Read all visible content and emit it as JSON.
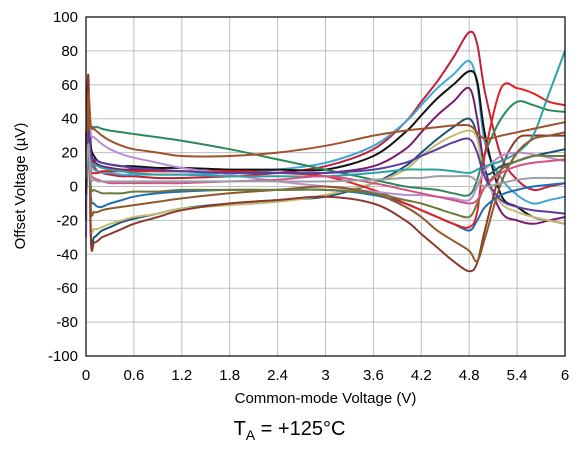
{
  "chart_data": {
    "type": "line",
    "title": "",
    "xlabel": "Common-mode Voltage (V)",
    "ylabel": "Offset Voltage (µV)",
    "xlim": [
      0,
      6
    ],
    "ylim": [
      -100,
      100
    ],
    "x_ticks": [
      "0",
      "0.6",
      "1.2",
      "1.8",
      "2.4",
      "3",
      "3.6",
      "4.2",
      "4.8",
      "5.4",
      "6"
    ],
    "y_ticks": [
      "-100",
      "-80",
      "-60",
      "-40",
      "-20",
      "0",
      "20",
      "40",
      "60",
      "80",
      "100"
    ],
    "grid": true,
    "legend": "none",
    "caption": {
      "main": "T",
      "sub": "A",
      "rest": " = +125°C"
    },
    "x": [
      0,
      0.03,
      0.06,
      0.1,
      0.15,
      0.2,
      0.3,
      0.45,
      0.6,
      0.9,
      1.2,
      1.8,
      2.4,
      3,
      3.6,
      4.0,
      4.2,
      4.4,
      4.6,
      4.8,
      4.9,
      5.0,
      5.2,
      5.4,
      5.6,
      5.8,
      6
    ],
    "series": [
      {
        "color": "#c0203a",
        "values": [
          30,
          45,
          22,
          12,
          9,
          8,
          7,
          6,
          6,
          5,
          5,
          6,
          8,
          12,
          22,
          38,
          50,
          62,
          76,
          91,
          84,
          55,
          18,
          4,
          -2,
          0,
          2
        ]
      },
      {
        "color": "#3fa7d6",
        "values": [
          -10,
          20,
          14,
          10,
          9,
          8,
          8,
          7,
          7,
          7,
          7,
          8,
          10,
          14,
          24,
          38,
          48,
          58,
          66,
          74,
          60,
          25,
          5,
          -5,
          -10,
          -8,
          -6
        ]
      },
      {
        "color": "#111111",
        "values": [
          -20,
          50,
          24,
          18,
          15,
          14,
          13,
          12,
          12,
          11,
          11,
          10,
          10,
          10,
          18,
          32,
          42,
          52,
          60,
          68,
          62,
          30,
          -5,
          -12,
          -18,
          -20,
          -22
        ]
      },
      {
        "color": "#7a1c6e",
        "values": [
          -15,
          35,
          20,
          15,
          13,
          12,
          11,
          10,
          10,
          9,
          9,
          8,
          8,
          8,
          12,
          22,
          32,
          42,
          50,
          58,
          40,
          10,
          -15,
          -20,
          -22,
          -20,
          -18
        ]
      },
      {
        "color": "#1a5276",
        "values": [
          0,
          60,
          -28,
          -30,
          -28,
          -26,
          -24,
          -21,
          -19,
          -16,
          -13,
          -10,
          -8,
          -6,
          2,
          12,
          20,
          28,
          35,
          40,
          30,
          8,
          12,
          15,
          18,
          20,
          22
        ]
      },
      {
        "color": "#c4bb72",
        "values": [
          5,
          35,
          -22,
          -25,
          -25,
          -24,
          -22,
          -20,
          -18,
          -16,
          -13,
          -11,
          -9,
          -5,
          2,
          10,
          18,
          25,
          30,
          33,
          28,
          5,
          -10,
          -15,
          -18,
          -20,
          -22
        ]
      },
      {
        "color": "#2c8a5a",
        "values": [
          -5,
          40,
          36,
          35,
          35,
          34,
          33,
          32,
          31,
          29,
          27,
          22,
          16,
          10,
          4,
          0,
          -1,
          -2,
          -4,
          -5,
          4,
          20,
          40,
          50,
          48,
          45,
          44
        ]
      },
      {
        "color": "#8b3a2e",
        "values": [
          20,
          65,
          -30,
          -33,
          -32,
          -30,
          -28,
          -25,
          -22,
          -18,
          -14,
          -10,
          -8,
          -6,
          -10,
          -20,
          -28,
          -36,
          -44,
          -50,
          -45,
          -25,
          10,
          28,
          30,
          30,
          30
        ]
      },
      {
        "color": "#1f6fb2",
        "values": [
          10,
          38,
          -5,
          -10,
          -12,
          -12,
          -10,
          -8,
          -6,
          -4,
          -3,
          -2,
          -2,
          -2,
          -5,
          -10,
          -14,
          -18,
          -22,
          -26,
          -20,
          -12,
          -5,
          -2,
          0,
          1,
          2
        ]
      },
      {
        "color": "#e32020",
        "values": [
          0,
          30,
          10,
          8,
          8,
          9,
          9,
          9,
          9,
          9,
          9,
          9,
          8,
          6,
          -2,
          -10,
          -14,
          -18,
          -22,
          -24,
          -15,
          20,
          58,
          58,
          55,
          50,
          48
        ]
      },
      {
        "color": "#b98fcf",
        "values": [
          -30,
          48,
          31,
          29,
          27,
          25,
          22,
          19,
          17,
          14,
          11,
          7,
          3,
          0,
          -3,
          -5,
          -5,
          -6,
          -7,
          -8,
          0,
          10,
          18,
          20,
          19,
          17,
          15
        ]
      },
      {
        "color": "#2aa3a3",
        "values": [
          0,
          25,
          15,
          13,
          12,
          11,
          10,
          9,
          8,
          7,
          7,
          6,
          6,
          6,
          8,
          10,
          10,
          10,
          9,
          8,
          10,
          12,
          15,
          20,
          30,
          55,
          80
        ]
      },
      {
        "color": "#8e5a2c",
        "values": [
          15,
          45,
          -12,
          -15,
          -15,
          -14,
          -13,
          -12,
          -11,
          -9,
          -7,
          -4,
          -2,
          0,
          -4,
          -12,
          -18,
          -26,
          -32,
          -38,
          -44,
          -30,
          2,
          20,
          28,
          30,
          32
        ]
      },
      {
        "color": "#6c7a3b",
        "values": [
          0,
          30,
          0,
          -2,
          -3,
          -4,
          -4,
          -4,
          -3,
          -3,
          -2,
          -2,
          -2,
          -2,
          -4,
          -8,
          -10,
          -13,
          -16,
          -18,
          -10,
          0,
          10,
          15,
          18,
          18,
          18
        ]
      },
      {
        "color": "#d45087",
        "values": [
          10,
          28,
          8,
          5,
          4,
          3,
          2,
          2,
          2,
          2,
          2,
          3,
          4,
          6,
          2,
          -2,
          -4,
          -6,
          -8,
          -10,
          -8,
          0,
          8,
          12,
          14,
          15,
          16
        ]
      },
      {
        "color": "#5b3fa0",
        "values": [
          -5,
          32,
          18,
          16,
          15,
          14,
          13,
          12,
          11,
          10,
          9,
          8,
          8,
          8,
          10,
          14,
          18,
          22,
          26,
          28,
          20,
          5,
          -8,
          -12,
          -14,
          -15,
          -16
        ]
      },
      {
        "color": "#9aa0a6",
        "values": [
          5,
          25,
          5,
          4,
          3,
          3,
          3,
          3,
          3,
          3,
          3,
          3,
          3,
          3,
          4,
          5,
          5,
          6,
          6,
          6,
          3,
          0,
          2,
          4,
          5,
          5,
          5
        ]
      },
      {
        "color": "#a0522d",
        "values": [
          25,
          55,
          36,
          34,
          32,
          30,
          27,
          24,
          22,
          20,
          18,
          18,
          20,
          24,
          30,
          33,
          34,
          35,
          36,
          36,
          32,
          28,
          30,
          32,
          34,
          36,
          38
        ]
      }
    ]
  }
}
